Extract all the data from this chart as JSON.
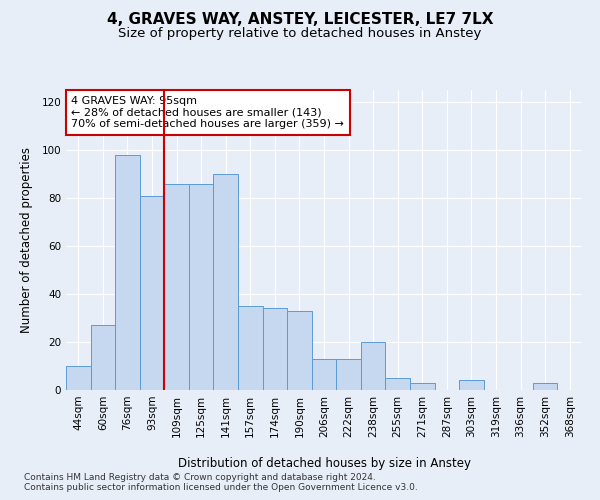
{
  "title": "4, GRAVES WAY, ANSTEY, LEICESTER, LE7 7LX",
  "subtitle": "Size of property relative to detached houses in Anstey",
  "xlabel": "Distribution of detached houses by size in Anstey",
  "ylabel": "Number of detached properties",
  "bar_labels": [
    "44sqm",
    "60sqm",
    "76sqm",
    "93sqm",
    "109sqm",
    "125sqm",
    "141sqm",
    "157sqm",
    "174sqm",
    "190sqm",
    "206sqm",
    "222sqm",
    "238sqm",
    "255sqm",
    "271sqm",
    "287sqm",
    "303sqm",
    "319sqm",
    "336sqm",
    "352sqm",
    "368sqm"
  ],
  "bar_values": [
    10,
    27,
    98,
    81,
    86,
    86,
    90,
    35,
    34,
    33,
    13,
    13,
    20,
    5,
    3,
    0,
    4,
    0,
    0,
    3,
    0
  ],
  "bar_color": "#c5d8f0",
  "bar_edge_color": "#5b9bd5",
  "vline_x": 3.5,
  "vline_color": "#cc0000",
  "annotation_text": "4 GRAVES WAY: 95sqm\n← 28% of detached houses are smaller (143)\n70% of semi-detached houses are larger (359) →",
  "annotation_box_color": "white",
  "annotation_box_edge": "#cc0000",
  "ylim": [
    0,
    125
  ],
  "yticks": [
    0,
    20,
    40,
    60,
    80,
    100,
    120
  ],
  "background_color": "#e8eef8",
  "plot_bg_color": "#e8eef8",
  "footer": "Contains HM Land Registry data © Crown copyright and database right 2024.\nContains public sector information licensed under the Open Government Licence v3.0.",
  "title_fontsize": 11,
  "subtitle_fontsize": 9.5,
  "xlabel_fontsize": 8.5,
  "ylabel_fontsize": 8.5,
  "tick_fontsize": 7.5,
  "annotation_fontsize": 8,
  "footer_fontsize": 6.5
}
